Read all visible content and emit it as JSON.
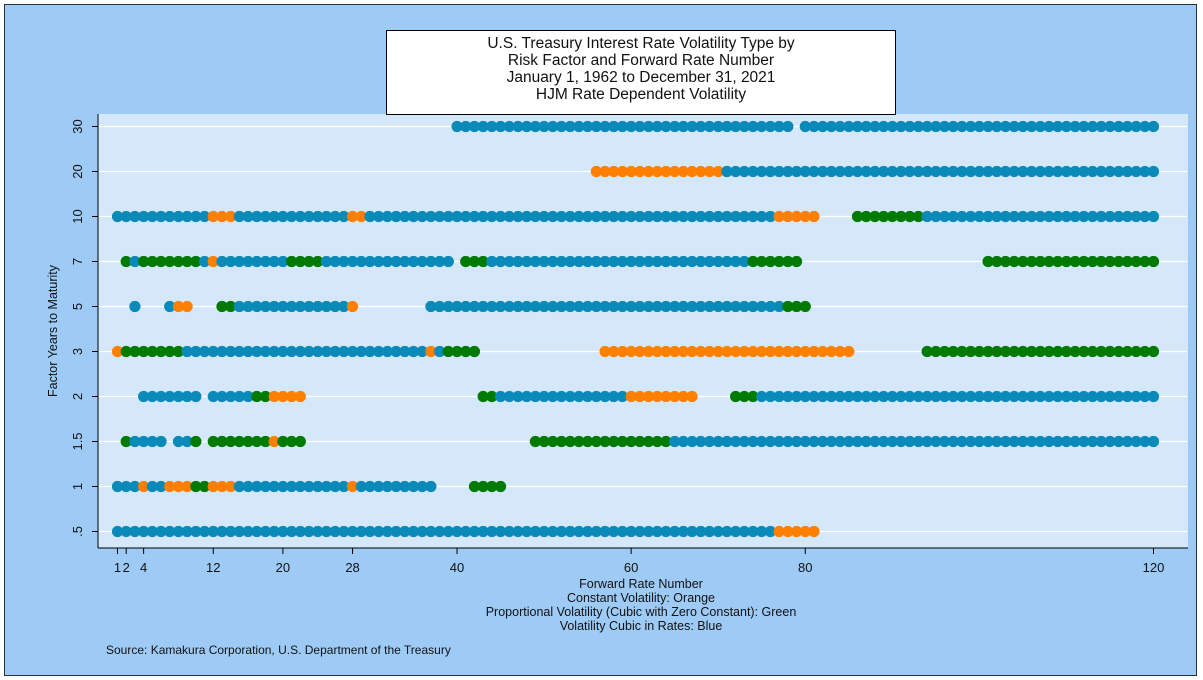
{
  "chart_data": {
    "type": "scatter",
    "title_lines": [
      "U.S. Treasury Interest Rate Volatility Type by",
      "Risk Factor and Forward Rate Number",
      "January 1, 1962 to December 31, 2021",
      "HJM Rate Dependent Volatility"
    ],
    "xlabel": "Forward Rate Number",
    "ylabel": "Factor Years to Maturity",
    "legend_lines": [
      "Constant Volatility: Orange",
      "Proportional Volatility (Cubic with Zero Constant): Green",
      "Volatility Cubic in Rates: Blue"
    ],
    "x_ticks": [
      1,
      2,
      4,
      12,
      20,
      28,
      40,
      60,
      80,
      120
    ],
    "x_tick_labels": [
      "1",
      "2",
      "4",
      "12",
      "20",
      "28",
      "40",
      "60",
      "80",
      "120"
    ],
    "y_categories": [
      ".5",
      "1",
      "1.5",
      "2",
      "3",
      "5",
      "7",
      "10",
      "20",
      "30"
    ],
    "xlim": [
      -1,
      122
    ],
    "grid": true,
    "colors": {
      "O": "#ff8000",
      "G": "#007a00",
      "B": "#0a8ab8"
    },
    "color_meaning": {
      "O": "Constant Volatility",
      "G": "Proportional Volatility",
      "B": "Volatility Cubic in Rates"
    },
    "series": [
      {
        "factor": "30",
        "segments": [
          [
            "B",
            40,
            78
          ],
          [
            "B",
            80,
            120
          ]
        ]
      },
      {
        "factor": "20",
        "segments": [
          [
            "O",
            56,
            71
          ],
          [
            "B",
            71,
            120
          ]
        ]
      },
      {
        "factor": "10",
        "segments": [
          [
            "B",
            1,
            11
          ],
          [
            "O",
            12,
            14
          ],
          [
            "B",
            15,
            27
          ],
          [
            "O",
            28,
            29
          ],
          [
            "B",
            30,
            76
          ],
          [
            "O",
            77,
            81
          ],
          [
            "G",
            86,
            93
          ],
          [
            "B",
            94,
            120
          ]
        ]
      },
      {
        "factor": "7",
        "segments": [
          [
            "G",
            2,
            2
          ],
          [
            "B",
            3,
            3
          ],
          [
            "G",
            4,
            10
          ],
          [
            "B",
            11,
            11
          ],
          [
            "O",
            12,
            12
          ],
          [
            "B",
            13,
            20
          ],
          [
            "G",
            21,
            24
          ],
          [
            "B",
            25,
            39
          ],
          [
            "G",
            41,
            43
          ],
          [
            "B",
            44,
            73
          ],
          [
            "G",
            74,
            79
          ],
          [
            "G",
            101,
            120
          ]
        ]
      },
      {
        "factor": "5",
        "segments": [
          [
            "B",
            3,
            3
          ],
          [
            "B",
            7,
            7
          ],
          [
            "O",
            8,
            9
          ],
          [
            "G",
            13,
            14
          ],
          [
            "B",
            15,
            27
          ],
          [
            "O",
            28,
            28
          ],
          [
            "B",
            37,
            77
          ],
          [
            "G",
            78,
            80
          ]
        ]
      },
      {
        "factor": "3",
        "segments": [
          [
            "O",
            1,
            1
          ],
          [
            "G",
            2,
            8
          ],
          [
            "B",
            9,
            36
          ],
          [
            "O",
            37,
            37
          ],
          [
            "B",
            38,
            38
          ],
          [
            "G",
            39,
            42
          ],
          [
            "O",
            57,
            85
          ],
          [
            "G",
            94,
            120
          ]
        ]
      },
      {
        "factor": "2",
        "segments": [
          [
            "B",
            4,
            10
          ],
          [
            "B",
            12,
            16
          ],
          [
            "G",
            17,
            18
          ],
          [
            "O",
            19,
            22
          ],
          [
            "G",
            43,
            44
          ],
          [
            "B",
            45,
            59
          ],
          [
            "O",
            60,
            67
          ],
          [
            "G",
            72,
            74
          ],
          [
            "B",
            75,
            120
          ]
        ]
      },
      {
        "factor": "1.5",
        "segments": [
          [
            "G",
            2,
            2
          ],
          [
            "B",
            3,
            6
          ],
          [
            "B",
            8,
            9
          ],
          [
            "G",
            10,
            10
          ],
          [
            "G",
            12,
            18
          ],
          [
            "O",
            19,
            19
          ],
          [
            "G",
            20,
            22
          ],
          [
            "G",
            49,
            64
          ],
          [
            "B",
            65,
            120
          ]
        ]
      },
      {
        "factor": "1",
        "segments": [
          [
            "B",
            1,
            3
          ],
          [
            "O",
            4,
            4
          ],
          [
            "B",
            5,
            6
          ],
          [
            "O",
            7,
            9
          ],
          [
            "G",
            10,
            11
          ],
          [
            "O",
            12,
            14
          ],
          [
            "B",
            15,
            27
          ],
          [
            "O",
            28,
            28
          ],
          [
            "B",
            29,
            37
          ],
          [
            "G",
            42,
            45
          ]
        ]
      },
      {
        "factor": ".5",
        "segments": [
          [
            "B",
            1,
            76
          ],
          [
            "O",
            77,
            81
          ]
        ]
      }
    ]
  },
  "source_text": "Source: Kamakura Corporation, U.S. Department of the Treasury"
}
